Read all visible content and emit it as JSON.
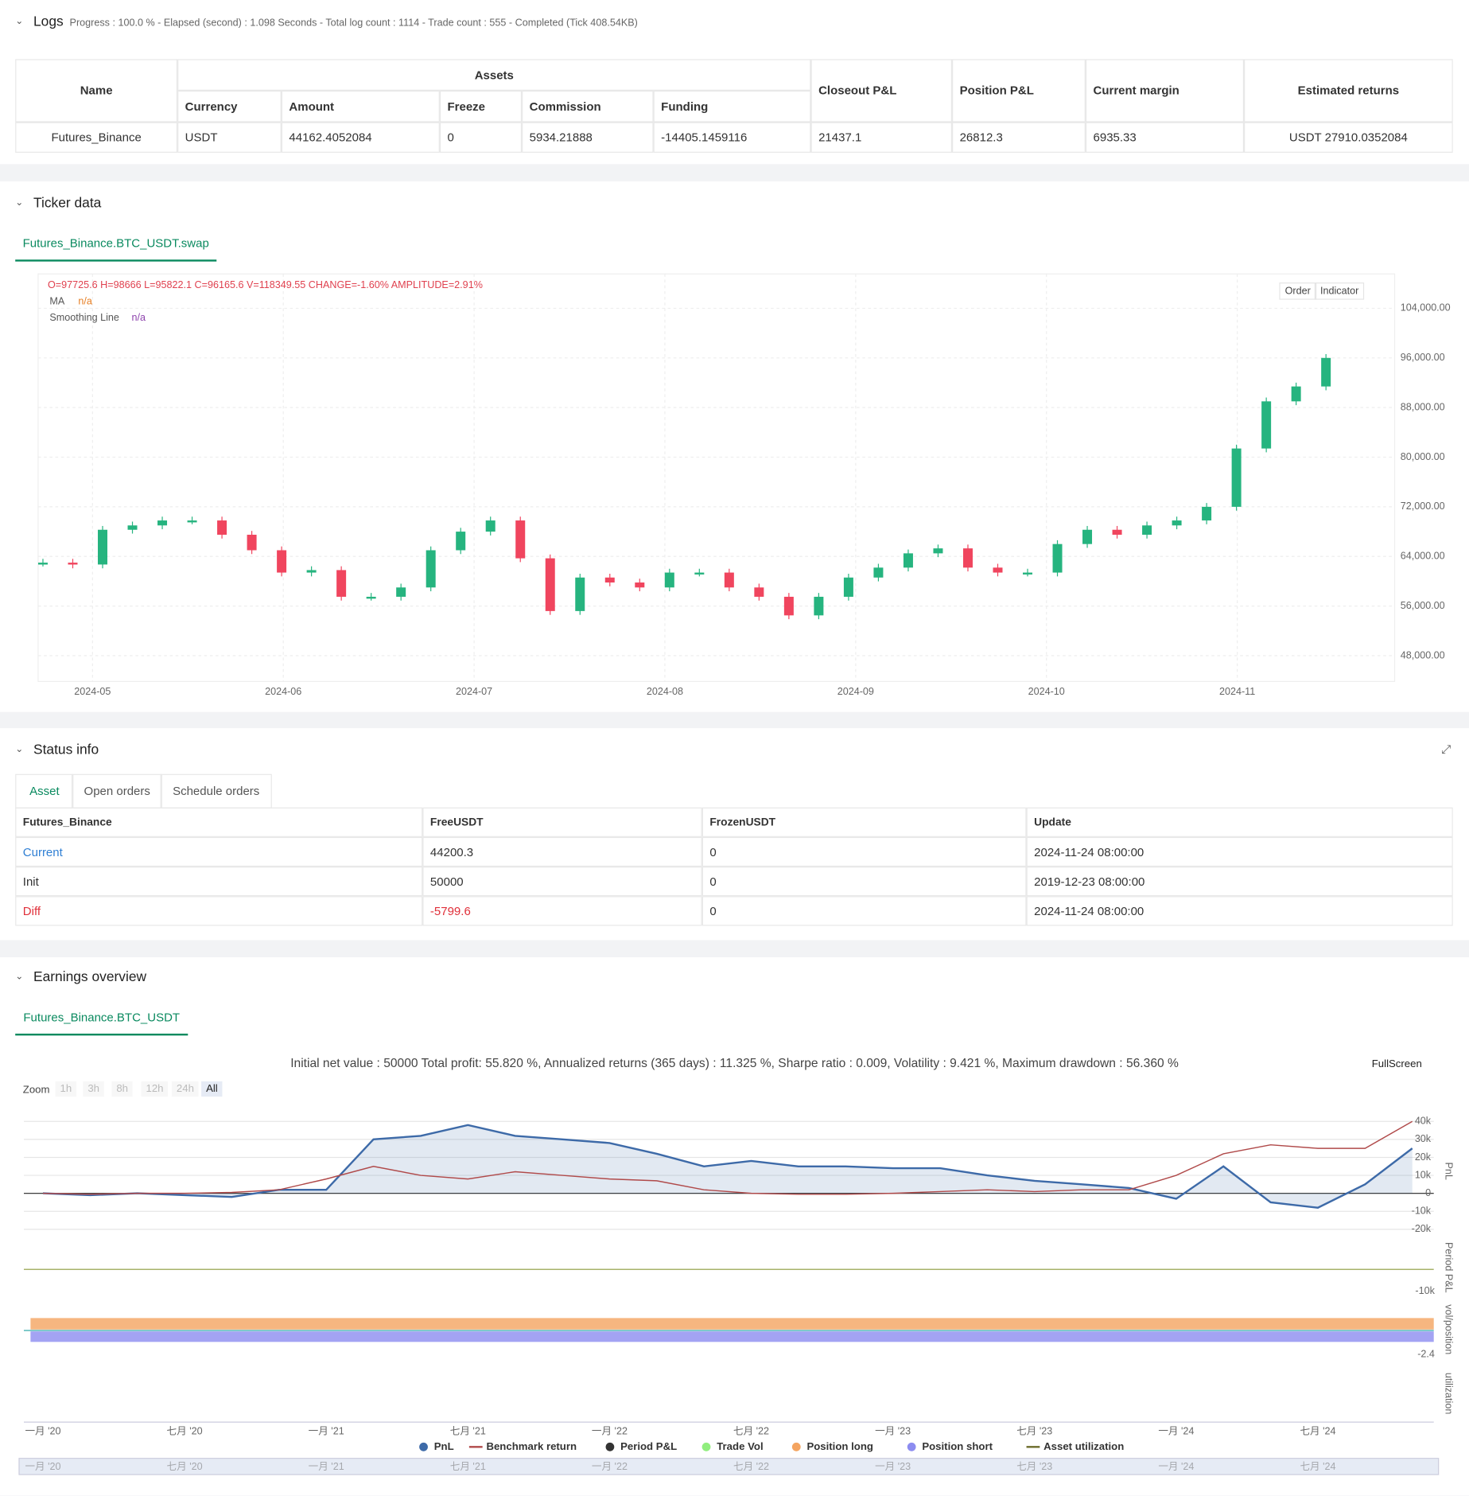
{
  "logs": {
    "title": "Logs",
    "summary": "Progress : 100.0 % - Elapsed (second) : 1.098  Seconds - Total log count : 1114 - Trade count : 555 - Completed (Tick 408.54KB)",
    "table": {
      "name_header": "Name",
      "assets_header": "Assets",
      "asset_headers": [
        "Currency",
        "Amount",
        "Freeze",
        "Commission",
        "Funding"
      ],
      "other_headers": [
        "Closeout P&L",
        "Position P&L",
        "Current margin",
        "Estimated returns"
      ],
      "row": [
        "Futures_Binance",
        "USDT",
        "44162.4052084",
        "0",
        "5934.21888",
        "-14405.1459116",
        "21437.1",
        "26812.3",
        "6935.33",
        "USDT 27910.0352084"
      ]
    }
  },
  "ticker": {
    "title": "Ticker data",
    "tab": "Futures_Binance.BTC_USDT.swap",
    "ohlc": "O=97725.6 H=98666 L=95822.1 C=96165.6 V=118349.55 CHANGE=-1.60% AMPLITUDE=2.91%",
    "indicators": [
      {
        "name": "MA",
        "value": "n/a"
      },
      {
        "name": "Smoothing Line",
        "value": "n/a"
      }
    ],
    "buttons": [
      "Order",
      "Indicator"
    ],
    "chart_data": {
      "type": "candlestick",
      "values": [
        63000,
        62700,
        68300,
        69000,
        69800,
        69800,
        67500,
        65000,
        61400,
        61800,
        57500,
        57500,
        59000,
        65000,
        68000,
        69800,
        63700,
        55200,
        60600,
        59800,
        59000,
        61400,
        61400,
        59000,
        57500,
        54500,
        57500,
        60600,
        62200,
        64500,
        65300,
        62200,
        61400,
        61400,
        66000,
        68300,
        67500,
        69000,
        69800,
        72000,
        81400,
        89000,
        91400,
        96000
      ],
      "ylim": [
        43850,
        109540
      ],
      "yticks": [
        {
          "value": 48000,
          "label": "48,000.00"
        },
        {
          "value": 56000,
          "label": "56,000.00"
        },
        {
          "value": 64000,
          "label": "64,000.00"
        },
        {
          "value": 72000,
          "label": "72,000.00"
        },
        {
          "value": 80000,
          "label": "80,000.00"
        },
        {
          "value": 88000,
          "label": "88,000.00"
        },
        {
          "value": 96000,
          "label": "96,000.00"
        },
        {
          "value": 104000,
          "label": "104,000.00"
        }
      ],
      "xticks": [
        "2024-05",
        "2024-06",
        "2024-07",
        "2024-08",
        "2024-09",
        "2024-10",
        "2024-11"
      ],
      "up_color": "#26b47f",
      "down_color": "#f0455e",
      "grid": true
    }
  },
  "status": {
    "title": "Status info",
    "tabs": [
      "Asset",
      "Open orders",
      "Schedule orders"
    ],
    "headers": [
      "Futures_Binance",
      "FreeUSDT",
      "FrozenUSDT",
      "Update"
    ],
    "rows": [
      [
        "Current",
        "44200.3",
        "0",
        "2024-11-24 08:00:00"
      ],
      [
        "Init",
        "50000",
        "0",
        "2019-12-23 08:00:00"
      ],
      [
        "Diff",
        "-5799.6",
        "0",
        "2024-11-24 08:00:00"
      ]
    ]
  },
  "earnings": {
    "title": "Earnings overview",
    "tab": "Futures_Binance.BTC_USDT",
    "stats": "Initial net value : 50000 Total profit: 55.820 %, Annualized returns (365 days) : 11.325 %, Sharpe ratio : 0.009, Volatility : 9.421 %, Maximum drawdown : 56.360 %",
    "fullscreen": "FullScreen",
    "zoom_label": "Zoom",
    "zoom_buttons": [
      "1h",
      "3h",
      "8h",
      "12h",
      "24h",
      "All"
    ],
    "axis_titles": [
      "PnL",
      "Period P&L",
      "vol/position",
      "utilization"
    ],
    "period_tick": "-10k",
    "position_tick": "-2.4",
    "chart_data": {
      "type": "line",
      "x": [
        "2020-01",
        "2020-03",
        "2020-05",
        "2020-07",
        "2020-09",
        "2020-11",
        "2021-01",
        "2021-03",
        "2021-05",
        "2021-07",
        "2021-09",
        "2021-11",
        "2022-01",
        "2022-03",
        "2022-05",
        "2022-07",
        "2022-09",
        "2022-11",
        "2023-01",
        "2023-03",
        "2023-05",
        "2023-07",
        "2023-09",
        "2023-11",
        "2024-01",
        "2024-03",
        "2024-05",
        "2024-07",
        "2024-09",
        "2024-11"
      ],
      "series": [
        {
          "name": "PnL",
          "color": "#3d6aa8",
          "values": [
            0,
            -1000,
            0,
            -1000,
            -2000,
            2000,
            2000,
            30000,
            32000,
            38000,
            32000,
            30000,
            28000,
            22000,
            15000,
            18000,
            15000,
            15000,
            14000,
            14000,
            10000,
            7000,
            5000,
            3000,
            -3000,
            15000,
            -5000,
            -8000,
            5000,
            25000
          ]
        },
        {
          "name": "Benchmark return",
          "color": "#b04a4a",
          "values": [
            0,
            -500,
            0,
            0,
            500,
            2000,
            8000,
            15000,
            10000,
            8000,
            12000,
            10000,
            8000,
            7000,
            2000,
            0,
            -500,
            -500,
            0,
            1000,
            2000,
            1000,
            2000,
            2000,
            10000,
            22000,
            27000,
            25000,
            25000,
            40000
          ]
        }
      ],
      "ylim": [
        -23700,
        45300
      ],
      "yticks": [
        {
          "value": -20000,
          "label": "-20k"
        },
        {
          "value": -10000,
          "label": "-10k"
        },
        0,
        {
          "value": 10000,
          "label": "10k"
        },
        {
          "value": 20000,
          "label": "20k"
        },
        {
          "value": 30000,
          "label": "30k"
        },
        {
          "value": 40000,
          "label": "40k"
        }
      ],
      "xticks": [
        "一月 '20",
        "七月 '20",
        "一月 '21",
        "七月 '21",
        "一月 '22",
        "七月 '22",
        "一月 '23",
        "七月 '23",
        "一月 '24",
        "七月 '24"
      ],
      "other_legend": [
        {
          "name": "Period P&L",
          "color": "#333333"
        },
        {
          "name": "Trade Vol",
          "color": "#90ee7e"
        },
        {
          "name": "Position long",
          "color": "#f4a460"
        },
        {
          "name": "Position short",
          "color": "#8c8cf0"
        },
        {
          "name": "Asset utilization",
          "color": "#6b6b2a"
        }
      ]
    }
  }
}
